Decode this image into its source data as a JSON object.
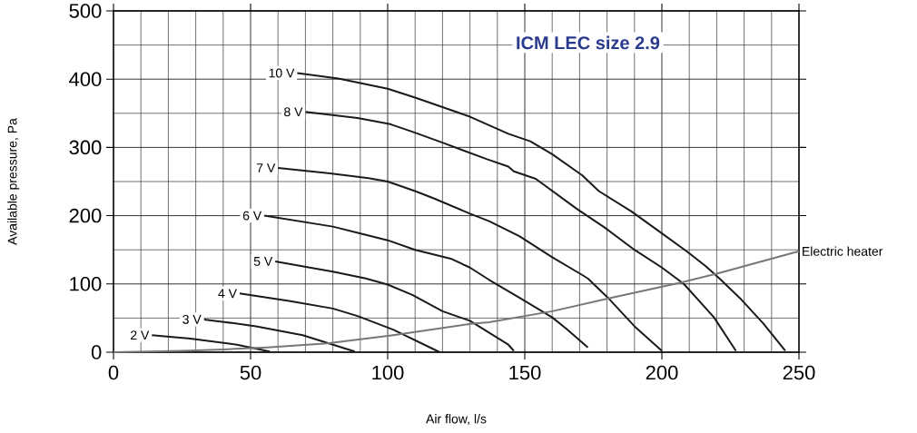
{
  "chart_data": {
    "type": "line",
    "title": "ICM LEC size 2.9",
    "xlabel": "Air flow, l/s",
    "ylabel": "Available pressure, Pa",
    "xlim": [
      0,
      250
    ],
    "ylim": [
      0,
      500
    ],
    "xticks": [
      0,
      50,
      100,
      150,
      200,
      250
    ],
    "yticks": [
      0,
      100,
      200,
      300,
      400,
      500
    ],
    "grid": true,
    "marker": "none",
    "line_style": "solid",
    "series": [
      {
        "name": "10 V",
        "color": "#1a1a1a",
        "x": [
          67,
          82,
          100,
          110,
          130,
          144,
          152,
          160,
          171,
          177,
          189,
          199,
          209,
          216,
          221,
          229,
          237,
          245
        ],
        "values": [
          409,
          401,
          386,
          373,
          345,
          320,
          309,
          290,
          259,
          236,
          206,
          177,
          148,
          126,
          108,
          77,
          42,
          2
        ]
      },
      {
        "name": "8 V",
        "color": "#1a1a1a",
        "x": [
          70,
          89,
          101,
          109,
          120,
          136,
          144,
          146,
          154,
          169,
          179,
          190,
          200,
          208,
          219,
          227
        ],
        "values": [
          352,
          343,
          334,
          323,
          307,
          283,
          272,
          265,
          254,
          210,
          183,
          150,
          124,
          100,
          51,
          2
        ]
      },
      {
        "name": "7 V",
        "color": "#1a1a1a",
        "x": [
          60,
          79,
          93,
          100,
          110,
          117,
          130,
          137,
          148,
          160,
          171,
          173,
          181,
          190,
          200
        ],
        "values": [
          270,
          262,
          255,
          250,
          236,
          225,
          203,
          192,
          170,
          139,
          113,
          108,
          77,
          38,
          2
        ]
      },
      {
        "name": "6 V",
        "color": "#1a1a1a",
        "x": [
          55,
          80,
          100,
          110,
          123,
          130,
          137,
          148,
          160,
          165,
          173
        ],
        "values": [
          200,
          184,
          164,
          150,
          137,
          124,
          106,
          80,
          51,
          35,
          7
        ]
      },
      {
        "name": "5 V",
        "color": "#1a1a1a",
        "x": [
          59,
          80,
          92,
          100,
          109,
          120,
          130,
          144,
          146
        ],
        "values": [
          133,
          118,
          108,
          99,
          84,
          60,
          46,
          11,
          2
        ]
      },
      {
        "name": "4 V",
        "color": "#1a1a1a",
        "x": [
          46,
          64,
          80,
          89,
          102,
          119
        ],
        "values": [
          86,
          75,
          64,
          53,
          33,
          0
        ]
      },
      {
        "name": "3 V",
        "color": "#1a1a1a",
        "x": [
          33,
          41,
          52,
          69,
          88
        ],
        "values": [
          48,
          44,
          38,
          25,
          1
        ]
      },
      {
        "name": "2 V",
        "color": "#1a1a1a",
        "x": [
          14,
          28,
          45,
          57
        ],
        "values": [
          25,
          20,
          11,
          1
        ]
      },
      {
        "name": "Electric heater",
        "color": "#777777",
        "x": [
          0,
          25,
          40,
          56,
          78,
          102,
          131,
          137,
          160,
          182,
          207,
          220,
          250
        ],
        "values": [
          0,
          2,
          4,
          7,
          13,
          25,
          42,
          44,
          60,
          80,
          102,
          115,
          148
        ]
      }
    ]
  }
}
